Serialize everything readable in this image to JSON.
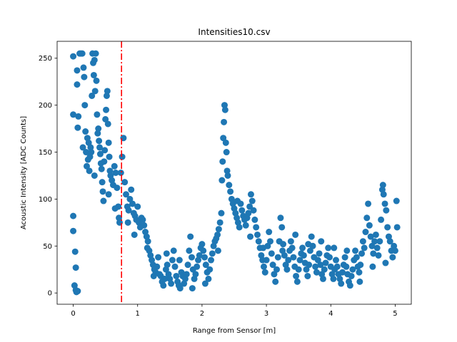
{
  "chart_data": {
    "type": "scatter",
    "title": "Intensities10.csv",
    "xlabel": "Range from Sensor [m]",
    "ylabel": "Acoustic Intensity [ADC Counts]",
    "xlim": [
      -0.25,
      5.25
    ],
    "ylim": [
      -12,
      268
    ],
    "xticks": [
      0,
      1,
      2,
      3,
      4,
      5
    ],
    "yticks": [
      0,
      50,
      100,
      150,
      200,
      250
    ],
    "grid": false,
    "colors": {
      "points": "#1f77b4",
      "vline": "#ff0000"
    },
    "vline": {
      "x": 0.75,
      "style": "dash-dot"
    },
    "series": [
      {
        "points": [
          [
            0.0,
            252
          ],
          [
            0.0,
            190
          ],
          [
            0.0,
            82
          ],
          [
            0.0,
            66
          ],
          [
            0.02,
            8
          ],
          [
            0.03,
            44
          ],
          [
            0.04,
            27
          ],
          [
            0.04,
            3
          ],
          [
            0.05,
            1
          ],
          [
            0.06,
            237
          ],
          [
            0.06,
            222
          ],
          [
            0.07,
            176
          ],
          [
            0.07,
            2
          ],
          [
            0.08,
            188
          ],
          [
            0.1,
            255
          ],
          [
            0.12,
            255
          ],
          [
            0.14,
            255
          ],
          [
            0.16,
            240
          ],
          [
            0.17,
            230
          ],
          [
            0.18,
            200
          ],
          [
            0.19,
            172
          ],
          [
            0.2,
            150
          ],
          [
            0.21,
            135
          ],
          [
            0.22,
            165
          ],
          [
            0.23,
            142
          ],
          [
            0.24,
            160
          ],
          [
            0.25,
            130
          ],
          [
            0.26,
            145
          ],
          [
            0.27,
            155
          ],
          [
            0.28,
            150
          ],
          [
            0.29,
            210
          ],
          [
            0.3,
            255
          ],
          [
            0.31,
            245
          ],
          [
            0.32,
            232
          ],
          [
            0.33,
            248
          ],
          [
            0.34,
            215
          ],
          [
            0.35,
            255
          ],
          [
            0.36,
            226
          ],
          [
            0.37,
            190
          ],
          [
            0.38,
            170
          ],
          [
            0.39,
            175
          ],
          [
            0.4,
            162
          ],
          [
            0.41,
            155
          ],
          [
            0.42,
            148
          ],
          [
            0.43,
            138
          ],
          [
            0.44,
            132
          ],
          [
            0.45,
            118
          ],
          [
            0.46,
            108
          ],
          [
            0.47,
            98
          ],
          [
            0.48,
            140
          ],
          [
            0.49,
            152
          ],
          [
            0.5,
            185
          ],
          [
            0.51,
            195
          ],
          [
            0.52,
            210
          ],
          [
            0.53,
            215
          ],
          [
            0.54,
            180
          ],
          [
            0.55,
            160
          ],
          [
            0.56,
            145
          ],
          [
            0.57,
            130
          ],
          [
            0.58,
            125
          ],
          [
            0.6,
            120
          ],
          [
            0.62,
            115
          ],
          [
            0.64,
            135
          ],
          [
            0.66,
            128
          ],
          [
            0.68,
            112
          ],
          [
            0.7,
            92
          ],
          [
            0.71,
            80
          ],
          [
            0.72,
            75
          ],
          [
            0.74,
            128
          ],
          [
            0.76,
            145
          ],
          [
            0.78,
            165
          ],
          [
            0.8,
            118
          ],
          [
            0.82,
            105
          ],
          [
            0.84,
            92
          ],
          [
            0.86,
            88
          ],
          [
            0.88,
            100
          ],
          [
            0.9,
            110
          ],
          [
            0.92,
            95
          ],
          [
            0.94,
            85
          ],
          [
            0.96,
            82
          ],
          [
            0.98,
            78
          ],
          [
            1.0,
            92
          ],
          [
            1.02,
            75
          ],
          [
            1.04,
            70
          ],
          [
            1.06,
            80
          ],
          [
            1.08,
            78
          ],
          [
            1.1,
            72
          ],
          [
            1.12,
            65
          ],
          [
            1.14,
            60
          ],
          [
            1.16,
            55
          ],
          [
            1.18,
            45
          ],
          [
            1.2,
            40
          ],
          [
            1.22,
            35
          ],
          [
            1.24,
            30
          ],
          [
            1.26,
            25
          ],
          [
            1.28,
            22
          ],
          [
            1.3,
            28
          ],
          [
            1.32,
            38
          ],
          [
            1.34,
            20
          ],
          [
            1.36,
            18
          ],
          [
            1.38,
            12
          ],
          [
            1.4,
            8
          ],
          [
            1.42,
            15
          ],
          [
            1.44,
            25
          ],
          [
            1.46,
            30
          ],
          [
            1.48,
            20
          ],
          [
            1.5,
            15
          ],
          [
            1.52,
            10
          ],
          [
            1.54,
            35
          ],
          [
            1.56,
            45
          ],
          [
            1.58,
            28
          ],
          [
            1.6,
            18
          ],
          [
            1.62,
            12
          ],
          [
            1.64,
            8
          ],
          [
            1.66,
            5
          ],
          [
            1.68,
            22
          ],
          [
            1.7,
            18
          ],
          [
            1.72,
            10
          ],
          [
            1.74,
            15
          ],
          [
            1.76,
            20
          ],
          [
            1.78,
            30
          ],
          [
            1.8,
            45
          ],
          [
            1.82,
            60
          ],
          [
            1.84,
            38
          ],
          [
            1.86,
            25
          ],
          [
            1.88,
            15
          ],
          [
            1.9,
            20
          ],
          [
            1.92,
            28
          ],
          [
            1.94,
            35
          ],
          [
            1.96,
            40
          ],
          [
            1.98,
            48
          ],
          [
            2.0,
            52
          ],
          [
            2.02,
            45
          ],
          [
            2.04,
            38
          ],
          [
            2.06,
            30
          ],
          [
            2.08,
            22
          ],
          [
            2.1,
            15
          ],
          [
            2.12,
            25
          ],
          [
            2.14,
            35
          ],
          [
            2.16,
            42
          ],
          [
            2.18,
            50
          ],
          [
            2.2,
            55
          ],
          [
            2.22,
            58
          ],
          [
            2.24,
            62
          ],
          [
            2.26,
            68
          ],
          [
            2.28,
            75
          ],
          [
            2.3,
            85
          ],
          [
            2.31,
            120
          ],
          [
            2.32,
            140
          ],
          [
            2.33,
            165
          ],
          [
            2.34,
            182
          ],
          [
            2.35,
            200
          ],
          [
            2.36,
            195
          ],
          [
            2.37,
            160
          ],
          [
            2.38,
            150
          ],
          [
            2.39,
            130
          ],
          [
            2.4,
            125
          ],
          [
            2.42,
            115
          ],
          [
            2.44,
            108
          ],
          [
            2.46,
            100
          ],
          [
            2.48,
            95
          ],
          [
            2.5,
            90
          ],
          [
            2.52,
            85
          ],
          [
            2.54,
            80
          ],
          [
            2.56,
            75
          ],
          [
            2.58,
            70
          ],
          [
            2.6,
            95
          ],
          [
            2.62,
            88
          ],
          [
            2.64,
            82
          ],
          [
            2.66,
            78
          ],
          [
            2.68,
            72
          ],
          [
            2.7,
            80
          ],
          [
            2.72,
            85
          ],
          [
            2.74,
            92
          ],
          [
            2.76,
            105
          ],
          [
            2.78,
            98
          ],
          [
            2.8,
            88
          ],
          [
            2.82,
            78
          ],
          [
            2.84,
            70
          ],
          [
            2.86,
            62
          ],
          [
            2.88,
            55
          ],
          [
            2.9,
            48
          ],
          [
            2.92,
            40
          ],
          [
            2.94,
            35
          ],
          [
            2.96,
            28
          ],
          [
            2.98,
            22
          ],
          [
            3.0,
            35
          ],
          [
            3.02,
            50
          ],
          [
            3.04,
            65
          ],
          [
            3.06,
            55
          ],
          [
            3.08,
            42
          ],
          [
            3.1,
            30
          ],
          [
            3.12,
            20
          ],
          [
            3.14,
            12
          ],
          [
            3.16,
            25
          ],
          [
            3.18,
            38
          ],
          [
            3.2,
            55
          ],
          [
            3.22,
            80
          ],
          [
            3.24,
            70
          ],
          [
            3.26,
            52
          ],
          [
            3.28,
            40
          ],
          [
            3.3,
            30
          ],
          [
            3.32,
            25
          ],
          [
            3.34,
            35
          ],
          [
            3.36,
            45
          ],
          [
            3.38,
            55
          ],
          [
            3.4,
            48
          ],
          [
            3.42,
            38
          ],
          [
            3.44,
            28
          ],
          [
            3.46,
            18
          ],
          [
            3.48,
            12
          ],
          [
            3.5,
            25
          ],
          [
            3.52,
            35
          ],
          [
            3.54,
            42
          ],
          [
            3.56,
            48
          ],
          [
            3.58,
            40
          ],
          [
            3.6,
            32
          ],
          [
            3.62,
            25
          ],
          [
            3.64,
            18
          ],
          [
            3.66,
            30
          ],
          [
            3.68,
            45
          ],
          [
            3.7,
            60
          ],
          [
            3.72,
            50
          ],
          [
            3.74,
            38
          ],
          [
            3.76,
            28
          ],
          [
            3.78,
            22
          ],
          [
            3.8,
            35
          ],
          [
            3.82,
            42
          ],
          [
            3.84,
            30
          ],
          [
            3.86,
            20
          ],
          [
            3.88,
            15
          ],
          [
            3.9,
            25
          ],
          [
            3.92,
            32
          ],
          [
            3.94,
            40
          ],
          [
            3.96,
            48
          ],
          [
            3.98,
            38
          ],
          [
            4.0,
            28
          ],
          [
            4.02,
            20
          ],
          [
            4.04,
            15
          ],
          [
            4.06,
            25
          ],
          [
            4.08,
            35
          ],
          [
            4.1,
            28
          ],
          [
            4.12,
            20
          ],
          [
            4.14,
            15
          ],
          [
            4.16,
            10
          ],
          [
            4.18,
            22
          ],
          [
            4.2,
            30
          ],
          [
            4.22,
            38
          ],
          [
            4.24,
            28
          ],
          [
            4.26,
            20
          ],
          [
            4.28,
            12
          ],
          [
            4.3,
            8
          ],
          [
            4.32,
            18
          ],
          [
            4.34,
            25
          ],
          [
            4.36,
            35
          ],
          [
            4.38,
            45
          ],
          [
            4.4,
            38
          ],
          [
            4.42,
            28
          ],
          [
            4.44,
            22
          ],
          [
            4.46,
            30
          ],
          [
            4.48,
            42
          ],
          [
            4.5,
            55
          ],
          [
            4.52,
            48
          ],
          [
            4.54,
            65
          ],
          [
            4.56,
            80
          ],
          [
            4.58,
            95
          ],
          [
            4.6,
            72
          ],
          [
            4.62,
            60
          ],
          [
            4.64,
            50
          ],
          [
            4.66,
            42
          ],
          [
            4.68,
            55
          ],
          [
            4.7,
            62
          ],
          [
            4.72,
            48
          ],
          [
            4.74,
            40
          ],
          [
            4.76,
            55
          ],
          [
            4.78,
            78
          ],
          [
            4.8,
            110
          ],
          [
            4.81,
            115
          ],
          [
            4.82,
            105
          ],
          [
            4.84,
            95
          ],
          [
            4.86,
            88
          ],
          [
            4.88,
            70
          ],
          [
            4.9,
            60
          ],
          [
            4.92,
            55
          ],
          [
            4.94,
            45
          ],
          [
            4.96,
            38
          ],
          [
            4.98,
            50
          ],
          [
            5.0,
            45
          ],
          [
            5.02,
            98
          ],
          [
            5.03,
            70
          ],
          [
            1.15,
            48
          ],
          [
            1.25,
            18
          ],
          [
            1.45,
            42
          ],
          [
            1.65,
            35
          ],
          [
            1.85,
            5
          ],
          [
            2.05,
            10
          ],
          [
            2.25,
            45
          ],
          [
            2.55,
            98
          ],
          [
            2.75,
            60
          ],
          [
            2.95,
            48
          ],
          [
            3.25,
            45
          ],
          [
            3.45,
            62
          ],
          [
            3.65,
            52
          ],
          [
            3.85,
            55
          ],
          [
            4.05,
            48
          ],
          [
            4.25,
            45
          ],
          [
            4.45,
            12
          ],
          [
            4.65,
            28
          ],
          [
            4.85,
            32
          ],
          [
            0.15,
            155
          ],
          [
            0.33,
            125
          ],
          [
            0.55,
            105
          ],
          [
            0.65,
            90
          ],
          [
            0.85,
            75
          ],
          [
            0.95,
            62
          ]
        ]
      }
    ]
  }
}
